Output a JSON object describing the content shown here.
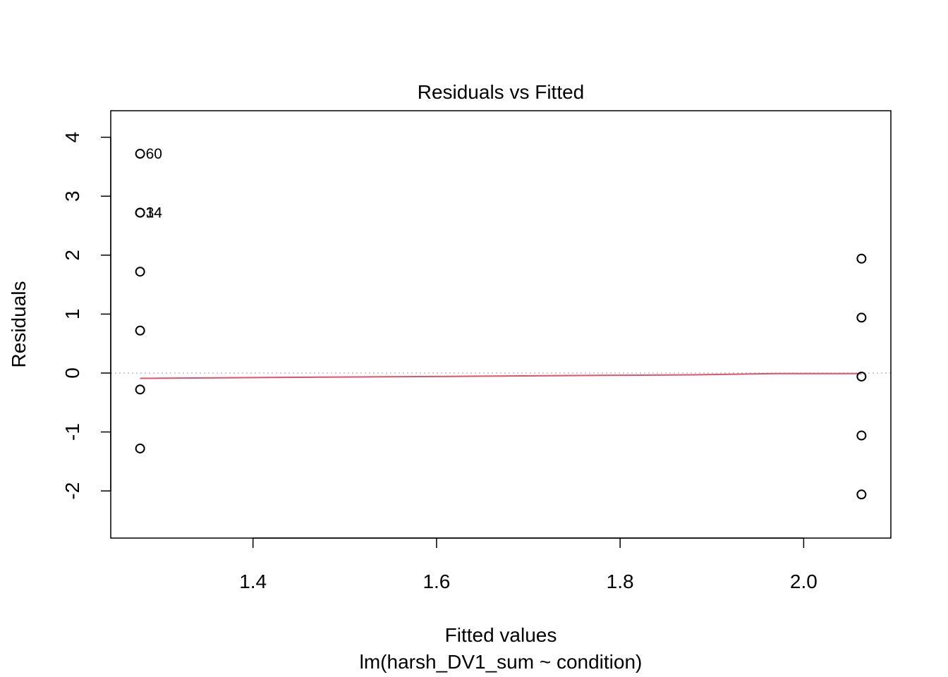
{
  "chart_data": {
    "type": "scatter",
    "title": "Residuals vs Fitted",
    "xlabel": "Fitted values",
    "subtitle": "lm(harsh_DV1_sum ~ condition)",
    "ylabel": "Residuals",
    "xlim": [
      1.245,
      2.095
    ],
    "ylim": [
      -2.8,
      4.45
    ],
    "x_ticks": [
      1.4,
      1.6,
      1.8,
      2.0
    ],
    "x_tick_labels": [
      "1.4",
      "1.6",
      "1.8",
      "2.0"
    ],
    "y_ticks": [
      -2,
      -1,
      0,
      1,
      2,
      3,
      4
    ],
    "y_tick_labels": [
      "-2",
      "-1",
      "0",
      "1",
      "2",
      "3",
      "4"
    ],
    "grid": false,
    "reference_line": {
      "y": 0,
      "style": "dotted",
      "color": "#bebebe"
    },
    "smoother": {
      "color": "#DF536B",
      "x": [
        1.277,
        1.38,
        1.48,
        1.58,
        1.68,
        1.78,
        1.88,
        1.97,
        2.063
      ],
      "y": [
        -0.09,
        -0.08,
        -0.07,
        -0.06,
        -0.05,
        -0.04,
        -0.03,
        -0.01,
        -0.01
      ]
    },
    "points": [
      {
        "x": 1.277,
        "y": 3.72,
        "label": "60"
      },
      {
        "x": 1.277,
        "y": 2.72,
        "label": "34"
      },
      {
        "x": 1.277,
        "y": 2.72,
        "label": "14"
      },
      {
        "x": 1.277,
        "y": 1.72
      },
      {
        "x": 1.277,
        "y": 0.72
      },
      {
        "x": 1.277,
        "y": -0.28
      },
      {
        "x": 1.277,
        "y": -1.28
      },
      {
        "x": 2.063,
        "y": 1.94
      },
      {
        "x": 2.063,
        "y": 0.94
      },
      {
        "x": 2.063,
        "y": -0.06
      },
      {
        "x": 2.063,
        "y": -1.06
      },
      {
        "x": 2.063,
        "y": -2.06
      }
    ]
  }
}
